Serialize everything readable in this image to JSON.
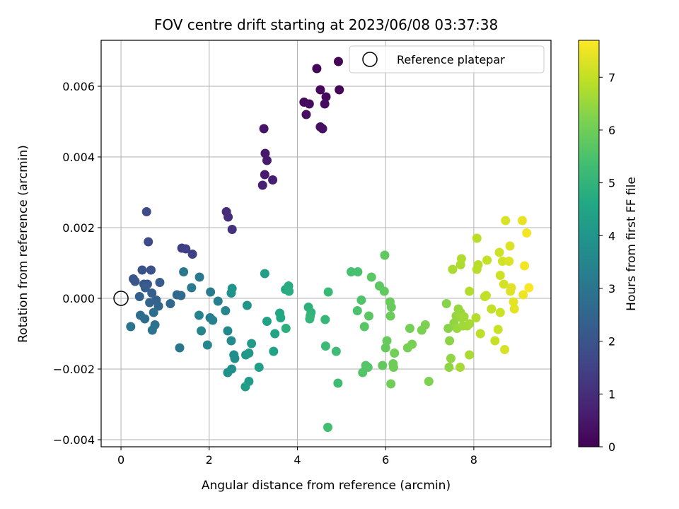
{
  "chart_data": {
    "type": "scatter",
    "title": "FOV centre drift starting at 2023/06/08 03:37:38",
    "xlabel": "Angular distance from reference (arcmin)",
    "ylabel": "Rotation from reference (arcmin)",
    "xlim": [
      -0.45,
      9.75
    ],
    "ylim": [
      -0.0042,
      0.0073
    ],
    "xticks": [
      0,
      2,
      4,
      6,
      8
    ],
    "xtick_labels": [
      "0",
      "2",
      "4",
      "6",
      "8"
    ],
    "yticks": [
      -0.004,
      -0.002,
      0.0,
      0.002,
      0.004,
      0.006
    ],
    "ytick_labels": [
      "−0.004",
      "−0.002",
      "0.000",
      "0.002",
      "0.004",
      "0.006"
    ],
    "grid": true,
    "legend": {
      "placement": "top-right",
      "entries": [
        "Reference platepar"
      ]
    },
    "reference_point": {
      "x": 0.0,
      "y": 0.0
    },
    "colorbar": {
      "label": "Hours from first FF file",
      "range": [
        0,
        7.7
      ],
      "ticks": [
        0,
        1,
        2,
        3,
        4,
        5,
        6,
        7
      ],
      "tick_labels": [
        "0",
        "1",
        "2",
        "3",
        "4",
        "5",
        "6",
        "7"
      ],
      "colormap": "viridis"
    },
    "points": [
      {
        "x": 4.93,
        "y": 0.0067,
        "h": 0.05
      },
      {
        "x": 4.95,
        "y": 0.0059,
        "h": 0.1
      },
      {
        "x": 4.44,
        "y": 0.0065,
        "h": 0.12
      },
      {
        "x": 4.52,
        "y": 0.0059,
        "h": 0.15
      },
      {
        "x": 4.65,
        "y": 0.0057,
        "h": 0.18
      },
      {
        "x": 4.15,
        "y": 0.00555,
        "h": 0.2
      },
      {
        "x": 4.27,
        "y": 0.0055,
        "h": 0.22
      },
      {
        "x": 4.62,
        "y": 0.0055,
        "h": 0.25
      },
      {
        "x": 4.2,
        "y": 0.0052,
        "h": 0.28
      },
      {
        "x": 4.52,
        "y": 0.00485,
        "h": 0.3
      },
      {
        "x": 4.57,
        "y": 0.0048,
        "h": 0.32
      },
      {
        "x": 3.24,
        "y": 0.0048,
        "h": 0.45
      },
      {
        "x": 3.27,
        "y": 0.0041,
        "h": 0.5
      },
      {
        "x": 3.31,
        "y": 0.0039,
        "h": 0.55
      },
      {
        "x": 3.26,
        "y": 0.0035,
        "h": 0.6
      },
      {
        "x": 3.44,
        "y": 0.00335,
        "h": 0.65
      },
      {
        "x": 3.21,
        "y": 0.0032,
        "h": 0.7
      },
      {
        "x": 2.39,
        "y": 0.00245,
        "h": 0.95
      },
      {
        "x": 2.43,
        "y": 0.0023,
        "h": 1.0
      },
      {
        "x": 2.52,
        "y": 0.00195,
        "h": 1.05
      },
      {
        "x": 1.38,
        "y": 0.00142,
        "h": 1.4
      },
      {
        "x": 1.47,
        "y": 0.0014,
        "h": 1.45
      },
      {
        "x": 1.62,
        "y": 0.00125,
        "h": 1.5
      },
      {
        "x": 0.58,
        "y": 0.00245,
        "h": 1.7
      },
      {
        "x": 0.62,
        "y": 0.0016,
        "h": 1.75
      },
      {
        "x": 0.48,
        "y": 0.0008,
        "h": 1.9
      },
      {
        "x": 0.68,
        "y": 0.0008,
        "h": 1.95
      },
      {
        "x": 0.28,
        "y": 0.00055,
        "h": 2.0
      },
      {
        "x": 0.32,
        "y": 0.00048,
        "h": 2.05
      },
      {
        "x": 0.52,
        "y": 0.0004,
        "h": 2.1
      },
      {
        "x": 0.6,
        "y": 0.0004,
        "h": 2.15
      },
      {
        "x": 0.88,
        "y": 0.00045,
        "h": 2.2
      },
      {
        "x": 0.55,
        "y": 0.0003,
        "h": 2.25
      },
      {
        "x": 0.7,
        "y": 0.00015,
        "h": 2.3
      },
      {
        "x": 0.42,
        "y": 5e-05,
        "h": 2.35
      },
      {
        "x": 0.8,
        "y": -5e-05,
        "h": 2.4
      },
      {
        "x": 0.65,
        "y": -0.00012,
        "h": 2.45
      },
      {
        "x": 0.85,
        "y": -0.00022,
        "h": 2.5
      },
      {
        "x": 1.12,
        "y": -0.00015,
        "h": 2.55
      },
      {
        "x": 1.27,
        "y": 0.0001,
        "h": 2.6
      },
      {
        "x": 1.36,
        "y": 8e-05,
        "h": 2.65
      },
      {
        "x": 0.44,
        "y": -0.00048,
        "h": 2.7
      },
      {
        "x": 0.54,
        "y": -0.00058,
        "h": 2.75
      },
      {
        "x": 0.74,
        "y": -0.0004,
        "h": 2.8
      },
      {
        "x": 0.77,
        "y": -0.00075,
        "h": 2.85
      },
      {
        "x": 0.71,
        "y": -0.0009,
        "h": 2.9
      },
      {
        "x": 0.22,
        "y": -0.0008,
        "h": 2.95
      },
      {
        "x": 1.33,
        "y": -0.0014,
        "h": 3.0
      },
      {
        "x": 1.42,
        "y": 0.00075,
        "h": 3.05
      },
      {
        "x": 1.78,
        "y": 0.0006,
        "h": 3.1
      },
      {
        "x": 1.6,
        "y": 0.0003,
        "h": 3.15
      },
      {
        "x": 2.03,
        "y": 0.00018,
        "h": 3.2
      },
      {
        "x": 2.2,
        "y": -8e-05,
        "h": 3.25
      },
      {
        "x": 2.02,
        "y": -0.00055,
        "h": 3.3
      },
      {
        "x": 2.08,
        "y": -0.00062,
        "h": 3.35
      },
      {
        "x": 1.77,
        "y": -0.00048,
        "h": 3.4
      },
      {
        "x": 1.82,
        "y": -0.00092,
        "h": 3.45
      },
      {
        "x": 1.96,
        "y": -0.00132,
        "h": 3.5
      },
      {
        "x": 2.37,
        "y": -0.00035,
        "h": 3.55
      },
      {
        "x": 2.42,
        "y": -0.00092,
        "h": 3.6
      },
      {
        "x": 2.5,
        "y": -0.0012,
        "h": 3.65
      },
      {
        "x": 2.56,
        "y": -0.0016,
        "h": 3.7
      },
      {
        "x": 2.58,
        "y": -0.0017,
        "h": 3.75
      },
      {
        "x": 2.51,
        "y": -0.002,
        "h": 3.8
      },
      {
        "x": 2.42,
        "y": -0.0021,
        "h": 3.85
      },
      {
        "x": 2.5,
        "y": 0.00015,
        "h": 3.9
      },
      {
        "x": 2.52,
        "y": 0.00028,
        "h": 3.95
      },
      {
        "x": 2.86,
        "y": -0.0002,
        "h": 4.0
      },
      {
        "x": 2.83,
        "y": -0.0016,
        "h": 4.05
      },
      {
        "x": 2.9,
        "y": -0.00155,
        "h": 4.1
      },
      {
        "x": 2.96,
        "y": -0.00128,
        "h": 4.15
      },
      {
        "x": 2.9,
        "y": -0.00235,
        "h": 4.2
      },
      {
        "x": 2.82,
        "y": -0.0025,
        "h": 4.25
      },
      {
        "x": 3.13,
        "y": -0.00195,
        "h": 4.3
      },
      {
        "x": 3.26,
        "y": 0.0007,
        "h": 4.35
      },
      {
        "x": 3.31,
        "y": -0.00065,
        "h": 4.4
      },
      {
        "x": 3.46,
        "y": -0.0015,
        "h": 4.45
      },
      {
        "x": 3.49,
        "y": -0.001,
        "h": 4.5
      },
      {
        "x": 3.6,
        "y": -0.00042,
        "h": 4.55
      },
      {
        "x": 3.62,
        "y": -0.00055,
        "h": 4.6
      },
      {
        "x": 3.73,
        "y": 0.00025,
        "h": 4.65
      },
      {
        "x": 3.78,
        "y": 0.0003,
        "h": 4.7
      },
      {
        "x": 3.8,
        "y": 0.00035,
        "h": 4.75
      },
      {
        "x": 3.81,
        "y": 0.0002,
        "h": 4.8
      },
      {
        "x": 3.74,
        "y": -0.00085,
        "h": 4.85
      },
      {
        "x": 4.25,
        "y": -0.00025,
        "h": 4.9
      },
      {
        "x": 4.31,
        "y": -0.0004,
        "h": 4.95
      },
      {
        "x": 4.29,
        "y": -0.0005,
        "h": 5.0
      },
      {
        "x": 4.28,
        "y": -0.00058,
        "h": 5.05
      },
      {
        "x": 4.63,
        "y": -0.0006,
        "h": 5.1
      },
      {
        "x": 4.7,
        "y": 0.00018,
        "h": 5.15
      },
      {
        "x": 4.64,
        "y": -0.00135,
        "h": 5.2
      },
      {
        "x": 4.88,
        "y": -0.0015,
        "h": 5.25
      },
      {
        "x": 4.92,
        "y": -0.0024,
        "h": 5.3
      },
      {
        "x": 4.69,
        "y": -0.00365,
        "h": 5.35
      },
      {
        "x": 5.22,
        "y": 0.00075,
        "h": 5.4
      },
      {
        "x": 5.37,
        "y": 0.00075,
        "h": 5.45
      },
      {
        "x": 5.36,
        "y": -0.00035,
        "h": 5.5
      },
      {
        "x": 5.45,
        "y": -5e-05,
        "h": 5.55
      },
      {
        "x": 5.48,
        "y": -0.0021,
        "h": 5.6
      },
      {
        "x": 5.55,
        "y": -0.0019,
        "h": 5.62
      },
      {
        "x": 5.6,
        "y": -0.00195,
        "h": 5.65
      },
      {
        "x": 5.52,
        "y": -0.0008,
        "h": 5.68
      },
      {
        "x": 5.62,
        "y": -0.0005,
        "h": 5.7
      },
      {
        "x": 5.68,
        "y": 0.0006,
        "h": 5.72
      },
      {
        "x": 5.86,
        "y": 0.00035,
        "h": 5.75
      },
      {
        "x": 5.98,
        "y": 0.00122,
        "h": 5.78
      },
      {
        "x": 5.97,
        "y": 0.0002,
        "h": 5.8
      },
      {
        "x": 5.93,
        "y": -0.0019,
        "h": 5.82
      },
      {
        "x": 6.0,
        "y": -0.0014,
        "h": 5.85
      },
      {
        "x": 6.03,
        "y": -0.0012,
        "h": 5.88
      },
      {
        "x": 6.1,
        "y": -0.0001,
        "h": 5.9
      },
      {
        "x": 6.13,
        "y": -0.00025,
        "h": 5.92
      },
      {
        "x": 6.11,
        "y": -0.0005,
        "h": 5.95
      },
      {
        "x": 6.17,
        "y": -0.00185,
        "h": 5.98
      },
      {
        "x": 6.18,
        "y": -0.00195,
        "h": 6.0
      },
      {
        "x": 6.12,
        "y": -0.00242,
        "h": 6.02
      },
      {
        "x": 6.2,
        "y": -0.00155,
        "h": 6.05
      },
      {
        "x": 6.55,
        "y": -0.00085,
        "h": 6.08
      },
      {
        "x": 6.5,
        "y": -0.0014,
        "h": 6.1
      },
      {
        "x": 6.6,
        "y": -0.0013,
        "h": 6.12
      },
      {
        "x": 6.82,
        "y": -0.0009,
        "h": 6.15
      },
      {
        "x": 6.9,
        "y": -0.00075,
        "h": 6.18
      },
      {
        "x": 6.98,
        "y": -0.00235,
        "h": 6.2
      },
      {
        "x": 7.38,
        "y": -0.00015,
        "h": 6.3
      },
      {
        "x": 7.42,
        "y": -0.00085,
        "h": 6.32
      },
      {
        "x": 7.45,
        "y": -0.0012,
        "h": 6.35
      },
      {
        "x": 7.44,
        "y": -0.00195,
        "h": 6.38
      },
      {
        "x": 7.48,
        "y": -0.0017,
        "h": 6.4
      },
      {
        "x": 7.55,
        "y": -0.0007,
        "h": 6.42
      },
      {
        "x": 7.6,
        "y": -0.0005,
        "h": 6.45
      },
      {
        "x": 7.65,
        "y": -0.0003,
        "h": 6.48
      },
      {
        "x": 7.62,
        "y": -0.00085,
        "h": 6.5
      },
      {
        "x": 7.7,
        "y": -0.0004,
        "h": 6.52
      },
      {
        "x": 7.72,
        "y": -0.00055,
        "h": 6.55
      },
      {
        "x": 7.75,
        "y": -0.00078,
        "h": 6.58
      },
      {
        "x": 7.78,
        "y": -0.00052,
        "h": 6.6
      },
      {
        "x": 7.85,
        "y": -0.00078,
        "h": 6.62
      },
      {
        "x": 7.9,
        "y": -0.00072,
        "h": 6.65
      },
      {
        "x": 7.69,
        "y": -0.00195,
        "h": 6.68
      },
      {
        "x": 7.9,
        "y": -0.0016,
        "h": 6.7
      },
      {
        "x": 7.52,
        "y": 0.00082,
        "h": 6.72
      },
      {
        "x": 7.7,
        "y": 0.00095,
        "h": 6.75
      },
      {
        "x": 7.72,
        "y": 0.00112,
        "h": 6.78
      },
      {
        "x": 7.9,
        "y": 0.0002,
        "h": 6.8
      },
      {
        "x": 8.05,
        "y": -0.00055,
        "h": 6.82
      },
      {
        "x": 8.07,
        "y": 0.00082,
        "h": 6.85
      },
      {
        "x": 8.1,
        "y": 0.00095,
        "h": 6.88
      },
      {
        "x": 8.07,
        "y": 0.0017,
        "h": 6.9
      },
      {
        "x": 8.15,
        "y": -0.001,
        "h": 6.92
      },
      {
        "x": 8.25,
        "y": 5e-05,
        "h": 6.95
      },
      {
        "x": 8.28,
        "y": 8e-05,
        "h": 6.98
      },
      {
        "x": 8.3,
        "y": 0.00108,
        "h": 7.0
      },
      {
        "x": 8.4,
        "y": -0.0003,
        "h": 7.02
      },
      {
        "x": 8.48,
        "y": -0.0012,
        "h": 7.05
      },
      {
        "x": 8.55,
        "y": -0.00088,
        "h": 7.08
      },
      {
        "x": 8.6,
        "y": -0.0004,
        "h": 7.1
      },
      {
        "x": 8.58,
        "y": 0.0013,
        "h": 7.12
      },
      {
        "x": 8.6,
        "y": 0.00065,
        "h": 7.15
      },
      {
        "x": 8.65,
        "y": 0.00105,
        "h": 7.18
      },
      {
        "x": 8.68,
        "y": 0.0004,
        "h": 7.2
      },
      {
        "x": 8.7,
        "y": -0.00145,
        "h": 7.22
      },
      {
        "x": 8.72,
        "y": 0.0022,
        "h": 7.25
      },
      {
        "x": 8.8,
        "y": 0.00105,
        "h": 7.28
      },
      {
        "x": 8.82,
        "y": 0.00148,
        "h": 7.3
      },
      {
        "x": 8.83,
        "y": 0.0002,
        "h": 7.32
      },
      {
        "x": 8.85,
        "y": 0.0003,
        "h": 7.35
      },
      {
        "x": 8.9,
        "y": -0.0001,
        "h": 7.38
      },
      {
        "x": 8.92,
        "y": -0.0003,
        "h": 7.4
      },
      {
        "x": 9.1,
        "y": 0.0022,
        "h": 7.45
      },
      {
        "x": 9.12,
        "y": 0.0001,
        "h": 7.5
      },
      {
        "x": 9.15,
        "y": 0.00092,
        "h": 7.55
      },
      {
        "x": 9.2,
        "y": 0.00185,
        "h": 7.6
      },
      {
        "x": 9.25,
        "y": 0.0003,
        "h": 7.65
      }
    ]
  }
}
